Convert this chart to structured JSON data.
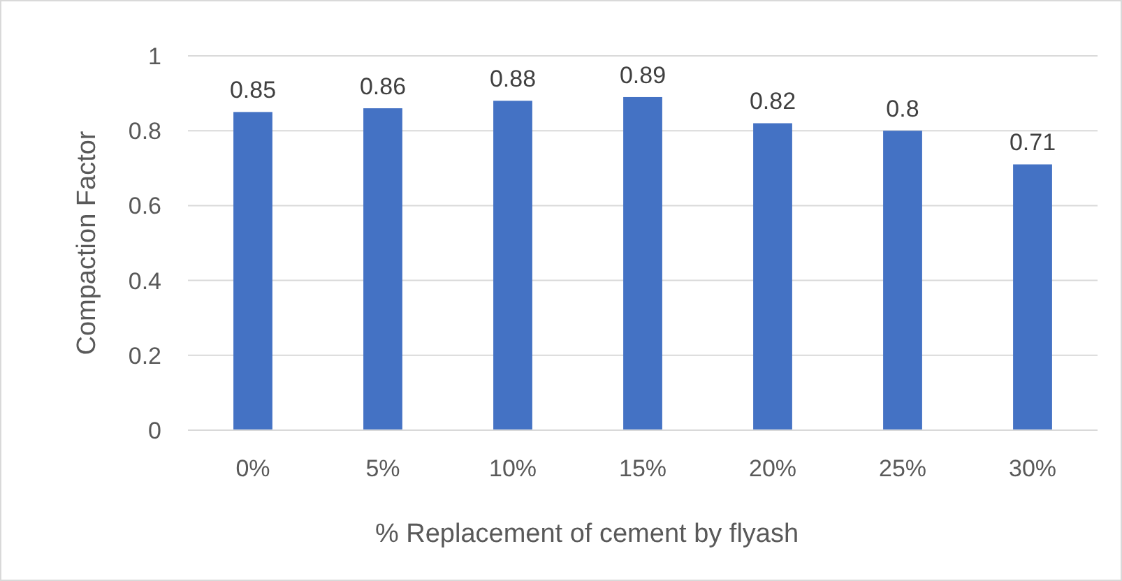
{
  "chart_data": {
    "type": "bar",
    "xlabel": "% Replacement of cement by flyash",
    "ylabel": "Compaction Factor",
    "categories": [
      "0%",
      "5%",
      "10%",
      "15%",
      "20%",
      "25%",
      "30%"
    ],
    "values": [
      0.85,
      0.86,
      0.88,
      0.89,
      0.82,
      0.8,
      0.71
    ],
    "color": "#4472c4",
    "ylim": [
      0,
      1
    ],
    "yticks": [
      0,
      0.2,
      0.4,
      0.6,
      0.8,
      1
    ],
    "grid": "y",
    "data_labels": true
  }
}
